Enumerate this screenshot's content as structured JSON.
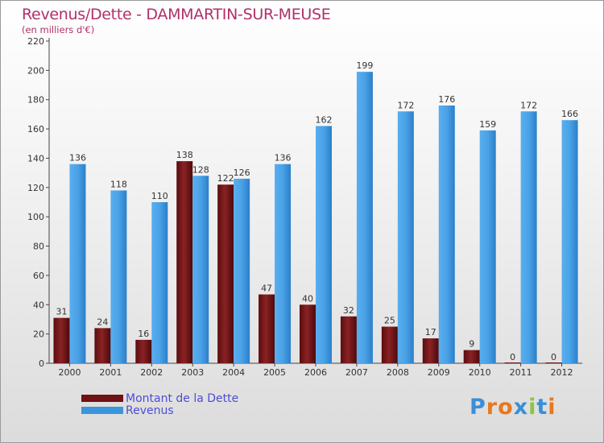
{
  "title": "Revenus/Dette - DAMMARTIN-SUR-MEUSE",
  "subtitle": "(en milliers d'€)",
  "logo": "Proxiti",
  "colors": {
    "dette": "#7a1618",
    "revenus": "#3b95dc",
    "axis": "#444444",
    "title": "#b0306a",
    "legend_text": "#4d4dd6"
  },
  "chart_data": {
    "type": "bar",
    "categories": [
      "2000",
      "2001",
      "2002",
      "2003",
      "2004",
      "2005",
      "2006",
      "2007",
      "2008",
      "2009",
      "2010",
      "2011",
      "2012"
    ],
    "series": [
      {
        "name": "Montant de la Dette",
        "values": [
          31,
          24,
          16,
          138,
          122,
          47,
          40,
          32,
          25,
          17,
          9,
          0,
          0
        ]
      },
      {
        "name": "Revenus",
        "values": [
          136,
          118,
          110,
          128,
          126,
          136,
          162,
          199,
          172,
          176,
          159,
          172,
          166
        ]
      }
    ],
    "ylim": [
      0,
      220
    ],
    "yticks": [
      0,
      20,
      40,
      60,
      80,
      100,
      120,
      140,
      160,
      180,
      200,
      220
    ],
    "grid": false,
    "legend": "bottom-left"
  }
}
